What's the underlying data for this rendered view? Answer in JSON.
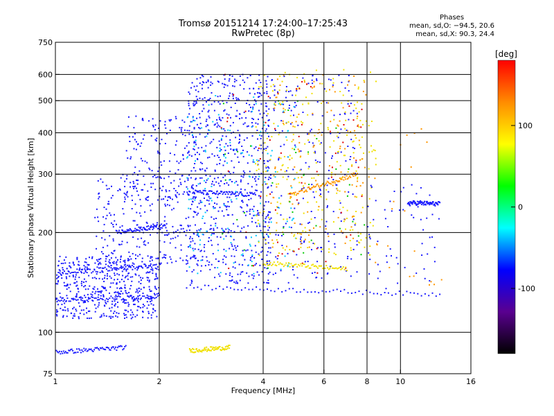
{
  "figure": {
    "title_line1": "Tromsø 20151214 17:24:00–17:25:43",
    "title_line2": "RwPretec (8p)",
    "phases_header": "Phases",
    "phases_O": "mean, sd,O: −94.5, 20.6",
    "phases_X": "mean, sd,X:  90.3, 24.4"
  },
  "chart_data": {
    "type": "scatter",
    "title": "Tromsø 20151214 17:24:00–17:25:43",
    "subtitle": "RwPretec (8p)",
    "xlabel": "Frequency [MHz]",
    "ylabel": "Stationary phase Virtual Height [km]",
    "xscale": "log",
    "yscale": "log",
    "xlim": [
      1,
      16
    ],
    "ylim": [
      75,
      750
    ],
    "x_ticks": [
      1,
      2,
      4,
      6,
      8,
      10,
      16
    ],
    "y_ticks": [
      75,
      100,
      200,
      300,
      400,
      500,
      600,
      750
    ],
    "x_gridlines": [
      2,
      4,
      6,
      8,
      10
    ],
    "y_gridlines": [
      100,
      200,
      300,
      400,
      500,
      600
    ],
    "grid": true,
    "colorbar": {
      "label": "[deg]",
      "range": [
        -180,
        180
      ],
      "ticks": [
        100,
        0,
        -100
      ],
      "colors": [
        "#ff0000",
        "#ff8c00",
        "#ffff00",
        "#00ff00",
        "#00ffff",
        "#0000ff",
        "#5a0090",
        "#000000"
      ]
    },
    "point_colors": {
      "blue": "#1a1aff",
      "darkblue": "#0000b0",
      "cyan": "#00c8ff",
      "green": "#00c800",
      "yellow": "#f0e000",
      "orange": "#ff9600",
      "red": "#e00000"
    },
    "traces": [
      {
        "name": "",
        "color": "blue",
        "x": [
          1.0,
          1.6
        ],
        "y": [
          87,
          90
        ]
      },
      {
        "name": "",
        "color": "yellow",
        "x": [
          2.45,
          3.2
        ],
        "y": [
          88,
          90
        ]
      },
      {
        "name": "",
        "color": "blue",
        "x": [
          1.0,
          2.0
        ],
        "y": [
          125,
          128
        ]
      },
      {
        "name": "",
        "color": "blue",
        "x": [
          1.0,
          2.0
        ],
        "y": [
          150,
          160
        ]
      },
      {
        "name": "",
        "color": "blue",
        "x": [
          2.4,
          13.0
        ],
        "y": [
          137,
          130
        ]
      },
      {
        "name": "",
        "color": "yellow",
        "x": [
          4.0,
          7.0
        ],
        "y": [
          162,
          155
        ]
      },
      {
        "name": "",
        "color": "orange",
        "x": [
          4.8,
          7.5
        ],
        "y": [
          260,
          300
        ]
      },
      {
        "name": "",
        "color": "blue",
        "x": [
          2.5,
          3.8
        ],
        "y": [
          265,
          260
        ]
      },
      {
        "name": "",
        "color": "blue",
        "x": [
          10.5,
          13.0
        ],
        "y": [
          246,
          244
        ]
      },
      {
        "name": "",
        "color": "blue",
        "x": [
          1.5,
          2.1
        ],
        "y": [
          200,
          210
        ]
      }
    ],
    "clouds": [
      {
        "color": "blue",
        "xmin": 1.0,
        "xmax": 2.0,
        "ymin": 110,
        "ymax": 170,
        "n": 520
      },
      {
        "color": "blue",
        "xmin": 1.3,
        "xmax": 2.6,
        "ymin": 160,
        "ymax": 300,
        "n": 260
      },
      {
        "color": "blue",
        "xmin": 1.6,
        "xmax": 2.4,
        "ymin": 250,
        "ymax": 450,
        "n": 140
      },
      {
        "color": "blue",
        "xmin": 2.4,
        "xmax": 4.2,
        "ymin": 140,
        "ymax": 600,
        "n": 700
      },
      {
        "color": "blue",
        "xmin": 4.0,
        "xmax": 7.5,
        "ymin": 140,
        "ymax": 600,
        "n": 240
      },
      {
        "color": "cyan",
        "xmin": 2.4,
        "xmax": 5.0,
        "ymin": 150,
        "ymax": 520,
        "n": 160
      },
      {
        "color": "yellow",
        "xmin": 3.8,
        "xmax": 8.5,
        "ymin": 170,
        "ymax": 620,
        "n": 260
      },
      {
        "color": "orange",
        "xmin": 4.2,
        "xmax": 8.0,
        "ymin": 180,
        "ymax": 600,
        "n": 140
      },
      {
        "color": "red",
        "xmin": 3.0,
        "xmax": 8.0,
        "ymin": 150,
        "ymax": 600,
        "n": 60
      },
      {
        "color": "green",
        "xmin": 3.0,
        "xmax": 8.0,
        "ymin": 150,
        "ymax": 500,
        "n": 40
      },
      {
        "color": "blue",
        "xmin": 8.0,
        "xmax": 13.0,
        "ymin": 135,
        "ymax": 280,
        "n": 60
      },
      {
        "color": "orange",
        "xmin": 7.5,
        "xmax": 14.0,
        "ymin": 135,
        "ymax": 450,
        "n": 25
      }
    ]
  }
}
